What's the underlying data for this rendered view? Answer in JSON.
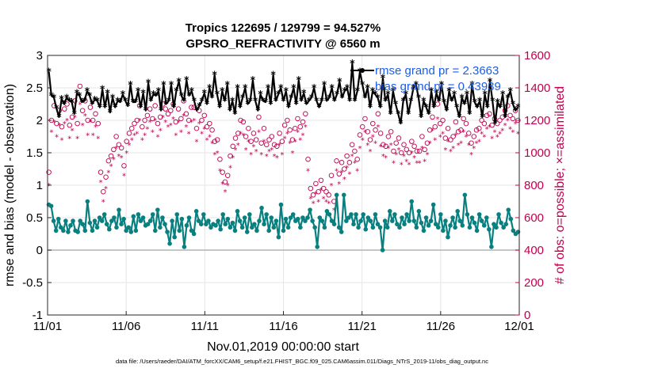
{
  "chart_data": {
    "type": "line",
    "title": "Tropics 122695 / 129799 = 94.527%",
    "subtitle": "GPSRO_REFRACTIVITY @ 6560 m",
    "xlabel": "Nov.01,2019 00:00:00 start",
    "ylabel_left": "rmse and bias (model - observation)",
    "ylabel_right": "# of obs: o=possible; ×=assimilated",
    "x_tick_labels": [
      "11/01",
      "11/06",
      "11/11",
      "11/16",
      "11/21",
      "11/26",
      "12/01"
    ],
    "x_tick_days": [
      0,
      5,
      10,
      15,
      20,
      25,
      30
    ],
    "xlim": [
      0,
      30
    ],
    "ylim_left": [
      -1,
      3
    ],
    "y_ticks_left": [
      "-1",
      "-0.5",
      "0",
      "0.5",
      "1",
      "1.5",
      "2",
      "2.5",
      "3"
    ],
    "ylim_right": [
      0,
      1600
    ],
    "y_ticks_right": [
      "0",
      "200",
      "400",
      "600",
      "800",
      "1000",
      "1200",
      "1400",
      "1600"
    ],
    "footnote": "data file: /Users/raeder/DAI/ATM_forcXX/CAM6_setup/f.e21.FHIST_BGC.f09_025.CAM6assim.011/Diags_NTrS_2019-11/obs_diag_output.nc",
    "legend": {
      "placement": "top-right",
      "entries": [
        "rmse grand pr = 2.3663",
        "bias grand pr = 0.43939"
      ]
    },
    "series": [
      {
        "name": "rmse",
        "color": "#000000",
        "values": [
          2.75,
          2.38,
          2.35,
          2.18,
          2.05,
          2.33,
          2.25,
          2.35,
          2.3,
          2.28,
          2.1,
          2.42,
          2.38,
          2.28,
          2.3,
          2.45,
          2.38,
          2.25,
          2.32,
          2.3,
          2.2,
          2.48,
          2.2,
          2.42,
          2.12,
          2.35,
          2.2,
          2.3,
          2.28,
          2.4,
          2.3,
          2.22,
          2.55,
          2.28,
          2.28,
          2.45,
          2.2,
          2.42,
          2.15,
          2.58,
          2.3,
          2.4,
          2.38,
          2.45,
          2.15,
          2.55,
          2.25,
          2.3,
          2.55,
          2.2,
          2.45,
          2.6,
          2.38,
          2.3,
          2.62,
          2.38,
          2.45,
          2.3,
          2.15,
          2.22,
          2.3,
          2.42,
          2.25,
          2.5,
          2.35,
          2.7,
          2.4,
          2.2,
          2.45,
          2.3,
          2.55,
          2.15,
          2.3,
          2.1,
          2.5,
          2.2,
          2.35,
          2.5,
          2.25,
          2.3,
          2.62,
          2.3,
          2.15,
          2.4,
          2.3,
          2.28,
          2.5,
          2.25,
          2.7,
          2.3,
          2.4,
          2.5,
          2.3,
          2.45,
          2.2,
          2.35,
          2.5,
          2.25,
          2.62,
          2.3,
          2.42,
          2.25,
          2.3,
          2.35,
          2.5,
          2.3,
          2.2,
          2.3,
          2.55,
          2.3,
          2.35,
          2.5,
          2.3,
          2.4,
          2.6,
          2.35,
          2.45,
          2.5,
          2.3,
          2.88,
          2.3,
          2.45,
          2.75,
          2.55,
          2.35,
          2.5,
          2.2,
          2.45,
          2.4,
          2.35,
          2.2,
          2.65,
          2.3,
          2.4,
          2.1,
          2.45,
          2.25,
          2.1,
          1.95,
          2.3,
          2.4,
          2.1,
          2.3,
          2.5,
          2.55,
          2.35,
          2.05,
          2.3,
          2.2,
          2.1,
          2.45,
          2.2,
          2.42,
          2.3,
          2.55,
          2.28,
          2.15,
          2.45,
          2.3,
          2.4,
          2.2,
          2.05,
          2.35,
          2.25,
          2.4,
          2.1,
          2.55,
          2.28,
          2.2,
          2.3,
          2.05,
          2.4,
          2.2,
          2.6,
          2.3,
          1.95,
          2.28,
          2.2,
          2.4,
          2.05,
          2.35,
          2.45,
          2.25,
          2.15,
          2.2
        ]
      },
      {
        "name": "bias",
        "color": "#088080",
        "values": [
          0.7,
          0.68,
          0.45,
          0.3,
          0.48,
          0.35,
          0.3,
          0.45,
          0.28,
          0.38,
          0.45,
          0.3,
          0.28,
          0.45,
          0.4,
          0.3,
          0.75,
          0.42,
          0.3,
          0.45,
          0.35,
          0.5,
          0.45,
          0.55,
          0.4,
          0.32,
          0.45,
          0.5,
          0.35,
          0.62,
          0.4,
          0.48,
          0.3,
          0.35,
          0.28,
          0.52,
          0.3,
          0.55,
          0.45,
          0.5,
          0.38,
          0.4,
          0.45,
          0.55,
          0.3,
          0.62,
          0.35,
          0.5,
          0.4,
          0.28,
          0.1,
          0.45,
          0.2,
          0.55,
          0.3,
          0.48,
          0.05,
          0.38,
          0.5,
          0.3,
          0.25,
          0.6,
          0.45,
          0.4,
          0.55,
          0.4,
          0.45,
          0.35,
          0.4,
          0.38,
          0.45,
          0.32,
          0.55,
          0.4,
          0.48,
          0.35,
          0.42,
          0.3,
          0.6,
          0.45,
          0.35,
          0.5,
          0.28,
          0.55,
          0.35,
          0.4,
          0.3,
          0.45,
          0.65,
          0.4,
          0.55,
          0.3,
          0.5,
          0.35,
          0.45,
          0.2,
          0.7,
          0.3,
          0.48,
          0.35,
          0.5,
          0.55,
          0.45,
          0.48,
          0.35,
          0.5,
          0.45,
          0.5,
          0.62,
          0.45,
          0.35,
          0.05,
          0.5,
          0.45,
          0.35,
          0.6,
          0.55,
          0.45,
          0.4,
          0.85,
          0.35,
          0.28,
          0.85,
          0.45,
          0.5,
          0.55,
          0.4,
          0.55,
          0.35,
          0.45,
          0.55,
          0.32,
          0.5,
          0.45,
          0.35,
          0.55,
          0.4,
          0.35,
          0.0,
          0.45,
          0.35,
          0.6,
          0.45,
          0.55,
          0.4,
          0.35,
          0.5,
          0.4,
          0.55,
          0.45,
          0.75,
          0.45,
          0.35,
          0.6,
          0.42,
          0.3,
          0.5,
          0.38,
          0.45,
          0.7,
          0.4,
          0.35,
          0.55,
          0.3,
          0.45,
          0.2,
          0.38,
          0.5,
          0.35,
          0.6,
          0.45,
          0.38,
          0.85,
          0.55,
          0.35,
          0.5,
          0.42,
          0.3,
          0.55,
          0.45,
          0.38,
          0.5,
          0.32,
          0.05,
          0.4,
          0.35,
          0.55,
          0.42,
          0.35,
          0.4,
          0.62,
          0.48,
          0.3,
          0.25,
          0.28
        ]
      },
      {
        "name": "possible",
        "color": "#c0004e",
        "marker": "o",
        "values": [
          880,
          1200,
          1290,
          1180,
          1260,
          1160,
          1270,
          1300,
          1170,
          1220,
          1320,
          1180,
          1410,
          1260,
          1320,
          1200,
          1280,
          1200,
          1240,
          1180,
          880,
          760,
          850,
          950,
          980,
          1020,
          1100,
          1050,
          1030,
          920,
          1070,
          1120,
          1150,
          1180,
          1200,
          1290,
          1160,
          1200,
          1230,
          1270,
          1210,
          1290,
          1180,
          1220,
          1300,
          1270,
          1240,
          1260,
          1300,
          1190,
          1270,
          1210,
          1320,
          1240,
          1200,
          1280,
          1280,
          1150,
          1260,
          1200,
          1230,
          1160,
          1180,
          1140,
          1070,
          1080,
          960,
          880,
          820,
          860,
          980,
          1040,
          1090,
          1120,
          1200,
          1190,
          1100,
          1150,
          1070,
          1120,
          1080,
          1220,
          1060,
          1150,
          1050,
          1080,
          1100,
          1050,
          1040,
          1120,
          1070,
          1170,
          1200,
          1140,
          1080,
          1150,
          1210,
          1160,
          1190,
          1240,
          960,
          780,
          740,
          810,
          760,
          830,
          780,
          760,
          740,
          860,
          700,
          950,
          870,
          940,
          900,
          980,
          940,
          1050,
          1010,
          960,
          1110,
          1160,
          1210,
          1130,
          1080,
          1180,
          1140,
          1240,
          1120,
          1050,
          1040,
          1100,
          1130,
          1010,
          1060,
          1090,
          1000,
          1050,
          1020,
          1000,
          1070,
          1040,
          1010,
          1010,
          1100,
          1020,
          1060,
          1140,
          1220,
          1160,
          1300,
          1180,
          1200,
          1090,
          1150,
          1080,
          1100,
          1190,
          1130,
          1140,
          1210,
          1180,
          1120,
          1060,
          1100,
          1140,
          1150,
          1200,
          1180,
          1230,
          1240,
          1170,
          1210,
          1180,
          1200,
          1220,
          1260,
          1290,
          1230,
          1210,
          1260,
          1200
        ]
      },
      {
        "name": "assimilated",
        "color": "#c0004e",
        "marker": "*",
        "values": [
          800,
          1130,
          1190,
          1100,
          1170,
          1080,
          1180,
          1200,
          1090,
          1140,
          1220,
          1090,
          1300,
          1170,
          1230,
          1110,
          1190,
          1110,
          1160,
          1090,
          820,
          700,
          780,
          880,
          920,
          960,
          1030,
          980,
          970,
          860,
          1000,
          1050,
          1080,
          1110,
          1120,
          1200,
          1080,
          1110,
          1150,
          1190,
          1130,
          1200,
          1100,
          1140,
          1220,
          1190,
          1160,
          1170,
          1210,
          1110,
          1190,
          1130,
          1230,
          1160,
          1120,
          1190,
          1200,
          1070,
          1180,
          1120,
          1150,
          1080,
          1100,
          1060,
          990,
          1000,
          890,
          810,
          760,
          800,
          910,
          970,
          1020,
          1050,
          1120,
          1110,
          1020,
          1070,
          990,
          1040,
          1010,
          1130,
          990,
          1070,
          980,
          1010,
          1020,
          980,
          970,
          1050,
          990,
          1090,
          1120,
          1060,
          1000,
          1070,
          1130,
          1080,
          1110,
          1160,
          890,
          720,
          690,
          750,
          700,
          770,
          720,
          700,
          690,
          800,
          650,
          890,
          810,
          880,
          840,
          910,
          870,
          980,
          940,
          890,
          1030,
          1080,
          1130,
          1050,
          1010,
          1100,
          1060,
          1160,
          1040,
          980,
          970,
          1030,
          1050,
          940,
          990,
          1020,
          930,
          980,
          950,
          930,
          1000,
          970,
          940,
          940,
          1030,
          950,
          990,
          1060,
          1140,
          1080,
          1210,
          1100,
          1120,
          1020,
          1070,
          1010,
          1030,
          1110,
          1050,
          1060,
          1130,
          1100,
          1050,
          990,
          1030,
          1060,
          1070,
          1120,
          1100,
          1150,
          1160,
          1090,
          1130,
          1100,
          1120,
          1140,
          1170,
          1200,
          1150,
          1130,
          1180,
          1120
        ]
      }
    ]
  }
}
